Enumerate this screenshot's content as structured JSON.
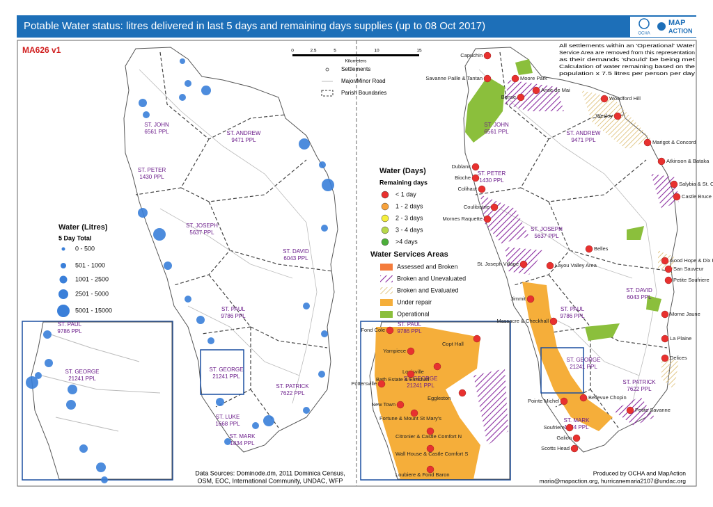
{
  "header": {
    "title": "Potable Water status: litres delivered in last 5 days and remaining days supplies (up to 08 Oct 2017)",
    "logos": [
      "OCHA",
      "MAP",
      "ACTION"
    ]
  },
  "map_id": "MA626  v1",
  "scale_bar": {
    "labels": [
      "0",
      "2.5",
      "5",
      "10",
      "15"
    ],
    "unit": "Kilometers"
  },
  "map_legend": [
    "Settlements",
    "Major/Minor Road",
    "Parish Boundaries"
  ],
  "note": [
    "All settlements within an 'Operational' Water",
    "Service Area are removed from this representation",
    "as their demands 'should' be being met",
    "Calculation of water remaining based on the",
    "population x 7.5 litres per person per day"
  ],
  "litres_legend": {
    "title": "Water (Litres)",
    "subtitle": "5 Day Total",
    "items": [
      "0 - 500",
      "501 - 1000",
      "1001 - 2500",
      "2501 - 5000",
      "5001 - 15000"
    ]
  },
  "days_legend": {
    "title": "Water (Days)",
    "subtitle": "Remaining days",
    "items": [
      {
        "label": "< 1 day",
        "color": "#e8312f"
      },
      {
        "label": "1 - 2 days",
        "color": "#f7a13a"
      },
      {
        "label": "2 - 3 days",
        "color": "#f5ef3c"
      },
      {
        "label": "3 - 4  days",
        "color": "#b7d84a"
      },
      {
        "label": ">4 days",
        "color": "#4caf3a"
      }
    ]
  },
  "areas_legend": {
    "title": "Water Services Areas",
    "items": [
      "Assessed and Broken",
      "Broken and Unevaluated",
      "Broken and Evaluated",
      "Under repair",
      "Operational"
    ]
  },
  "parishes": [
    {
      "name": "ST. JOHN",
      "population": "6561 PPL"
    },
    {
      "name": "ST. ANDREW",
      "population": "9471 PPL"
    },
    {
      "name": "ST. PETER",
      "population": "1430 PPL"
    },
    {
      "name": "ST. JOSEPH",
      "population": "5637 PPL"
    },
    {
      "name": "ST. DAVID",
      "population": "6043 PPL"
    },
    {
      "name": "ST. PAUL",
      "population": "9786 PPL"
    },
    {
      "name": "ST. GEORGE",
      "population": "21241 PPL"
    },
    {
      "name": "ST. PATRICK",
      "population": "7622 PPL"
    },
    {
      "name": "ST. LUKE",
      "population": "1668 PPL"
    },
    {
      "name": "ST. MARK",
      "population": "1834 PPL"
    }
  ],
  "settlements": [
    "Capuchin",
    "Savanne Paille & Tantan",
    "Moore Park",
    "Bense",
    "Anse de Mai",
    "Woodford Hill",
    "Wesley",
    "Marigot & Concord",
    "Atkinson & Bataka",
    "Salybia & St. Cyr",
    "Castle Bruce",
    "Dublanc",
    "Bioche",
    "Colihaut",
    "Coulibistrie",
    "Mornes Raquette",
    "Belles",
    "St. Joseph Village",
    "Layou Valley Area",
    "Jimmit",
    "Massacre & Checkhall",
    "Good Hope & Dix Pois",
    "San Sauveur",
    "Petite Soufriere",
    "Morne Jaune",
    "La Plaine",
    "Delices",
    "Pointe Michel",
    "Bellevue Chopin",
    "Petite Savanne",
    "Soufriere",
    "Galion",
    "Scotts Head"
  ],
  "inset_places": [
    "Fond Cole",
    "Yampiece",
    "Louisville",
    "Bath Estate & Elmshall",
    "Pottersville",
    "Copt Hall",
    "Eggleston",
    "New Town",
    "Fortune & Mount St Mary's",
    "Citronier & Castle Comfort N",
    "Wall House & Castle Comfort S",
    "Loubiere & Fond Baron"
  ],
  "sources": [
    "Data Sources: Dominode.dm, 2011 Dominica Census,",
    "OSM, EOC, International Community, UNDAC, WFP"
  ],
  "credits": [
    "Produced by OCHA and MapAction",
    "maria@mapaction.org, hurricanemaria2107@undac.org"
  ]
}
